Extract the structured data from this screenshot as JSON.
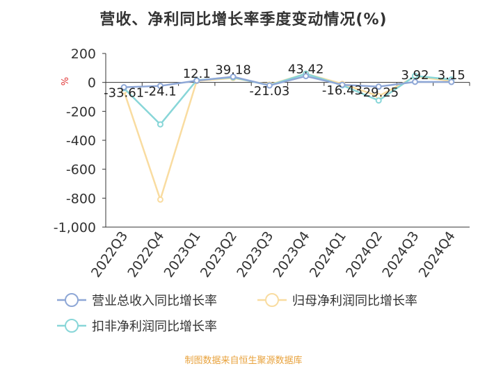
{
  "chart_data": {
    "type": "line",
    "title": "营收、净利同比增长率季度变动情况(%)",
    "ylabel": "%",
    "xlabel": "",
    "ylim": [
      -1000,
      200
    ],
    "yticks": [
      200,
      0,
      -200,
      -400,
      -600,
      -800,
      -1000
    ],
    "ytick_labels": [
      "200",
      "0",
      "-200",
      "-400",
      "-600",
      "-800",
      "-1,000"
    ],
    "categories": [
      "2022Q3",
      "2022Q4",
      "2023Q1",
      "2023Q2",
      "2023Q3",
      "2023Q4",
      "2024Q1",
      "2024Q2",
      "2024Q3",
      "2024Q4"
    ],
    "series": [
      {
        "name": "营业总收入同比增长率",
        "color": "#8ea7d6",
        "values": [
          -33.61,
          -24.1,
          12.1,
          39.18,
          -21.03,
          43.42,
          -16.43,
          -29.25,
          3.92,
          3.15
        ],
        "labels": [
          "-33.61",
          "-24.1",
          "12.1",
          "39.18",
          "-21.03",
          "43.42",
          "-16.43",
          "-29.25",
          "3.92",
          "3.15"
        ]
      },
      {
        "name": "归母净利润同比增长率",
        "color": "#f9dca0",
        "values": [
          -60,
          -810,
          10,
          30,
          -15,
          60,
          -10,
          -95,
          40,
          10
        ]
      },
      {
        "name": "扣非净利润同比增长率",
        "color": "#88d6d8",
        "values": [
          -40,
          -290,
          15,
          35,
          -20,
          60,
          -20,
          -125,
          45,
          20
        ]
      }
    ],
    "legend": {
      "placement": "bottom"
    }
  },
  "footer": {
    "source": "制图数据来自恒生聚源数据库"
  }
}
